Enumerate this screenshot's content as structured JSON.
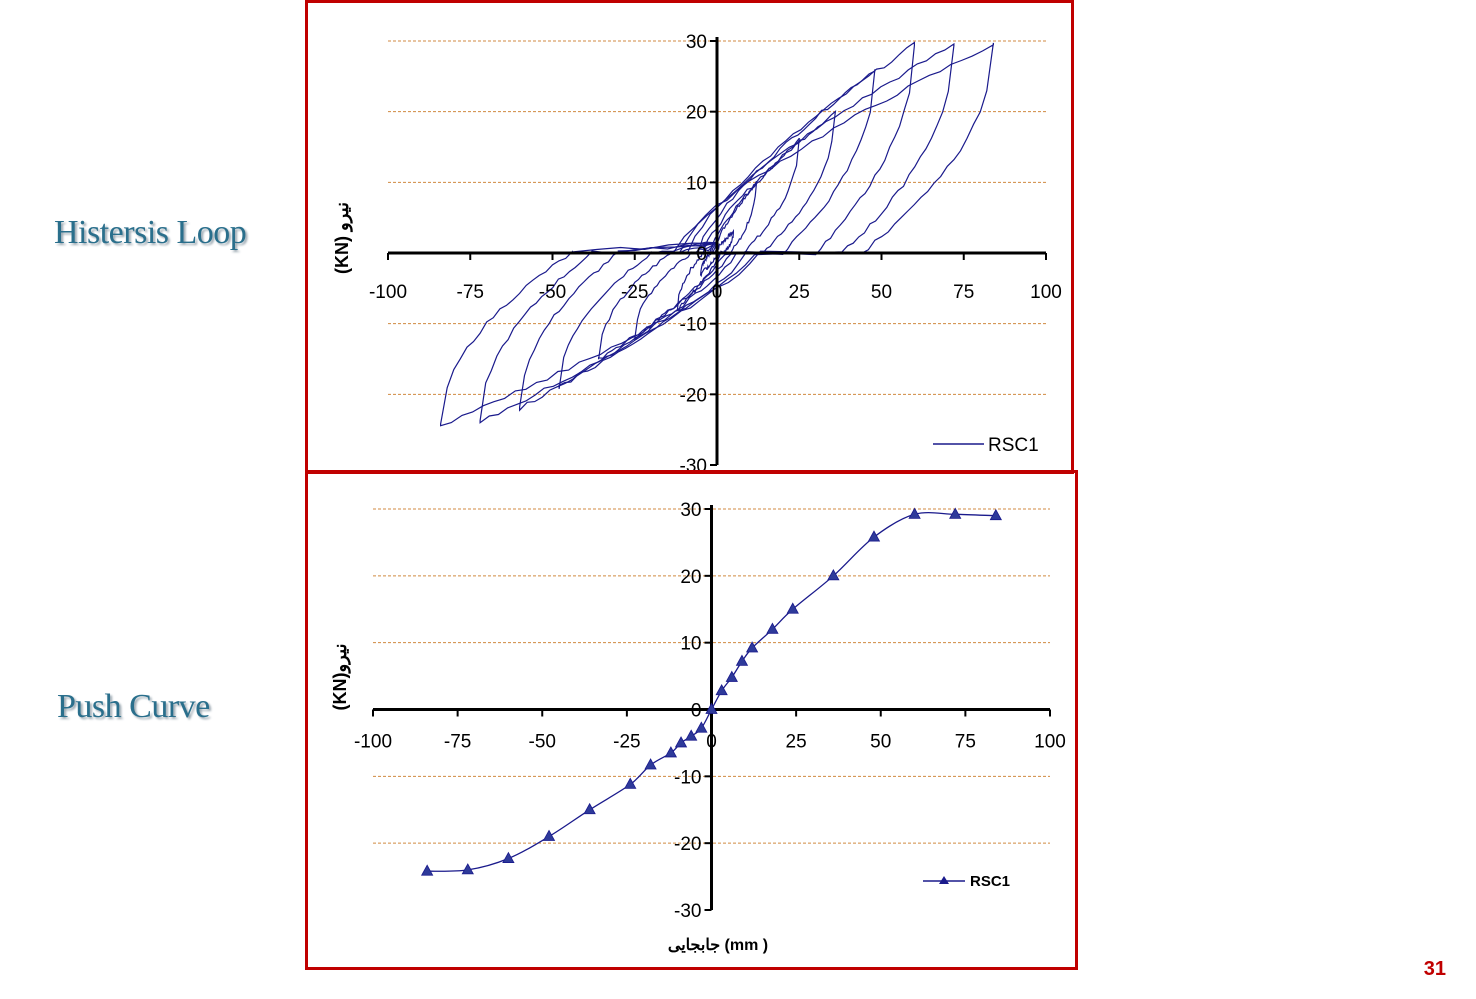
{
  "slide": {
    "label_hysteresis": "Histersis Loop",
    "label_push": "Push Curve",
    "page_number": "31"
  },
  "chart_data": [
    {
      "type": "line",
      "x_ticks": [
        "-100",
        "-75",
        "-50",
        "-25",
        "0",
        "25",
        "50",
        "75",
        "100"
      ],
      "y_ticks": [
        "30",
        "20",
        "10",
        "0",
        "-10",
        "-20",
        "-30"
      ],
      "xlim": [
        -100,
        100
      ],
      "ylim": [
        -30,
        30
      ],
      "ylabel": "(KN) نیرو",
      "grid": "horizontal-dashed",
      "legend": "bottom-right",
      "series": [
        {
          "name": "RSC1",
          "color": "#1a1a8c",
          "cycles": [
            {
              "peak_pos": [
                5,
                3
              ],
              "peak_neg": [
                -5,
                -3
              ],
              "residual": 2
            },
            {
              "peak_pos": [
                12,
                10
              ],
              "peak_neg": [
                -12,
                -8
              ],
              "residual": 4
            },
            {
              "peak_pos": [
                25,
                16
              ],
              "peak_neg": [
                -25,
                -12
              ],
              "residual": 8
            },
            {
              "peak_pos": [
                36,
                20
              ],
              "peak_neg": [
                -36,
                -15
              ],
              "residual": 14
            },
            {
              "peak_pos": [
                48,
                26
              ],
              "peak_neg": [
                -48,
                -19
              ],
              "residual": 20
            },
            {
              "peak_pos": [
                60,
                29.5
              ],
              "peak_neg": [
                -60,
                -22
              ],
              "residual": 30
            },
            {
              "peak_pos": [
                72,
                29.5
              ],
              "peak_neg": [
                -72,
                -24
              ],
              "residual": 38
            },
            {
              "peak_pos": [
                84,
                29.5
              ],
              "peak_neg": [
                -84,
                -24.5
              ],
              "residual": 44
            }
          ]
        }
      ]
    },
    {
      "type": "line",
      "x_ticks": [
        "-100",
        "-75",
        "-50",
        "-25",
        "0",
        "25",
        "50",
        "75",
        "100"
      ],
      "y_ticks": [
        "30",
        "20",
        "10",
        "0",
        "-10",
        "-20",
        "-30"
      ],
      "xlim": [
        -100,
        100
      ],
      "ylim": [
        -30,
        30
      ],
      "ylabel": "(KN)نیرو",
      "xlabel": "جابجایی (mm )",
      "grid": "horizontal-dashed",
      "legend": "bottom-right",
      "series": [
        {
          "name": "RSC1",
          "color": "#1a1a8c",
          "marker": "triangle",
          "x": [
            -84,
            -72,
            -60,
            -48,
            -36,
            -24,
            -18,
            -12,
            -9,
            -6,
            -3,
            0,
            3,
            6,
            9,
            12,
            18,
            24,
            36,
            48,
            60,
            72,
            84
          ],
          "y": [
            -24.2,
            -24,
            -22.3,
            -19,
            -15,
            -11.2,
            -8.3,
            -6.5,
            -5,
            -4,
            -2.8,
            0,
            2.8,
            4.8,
            7.2,
            9.2,
            12,
            15,
            20,
            25.8,
            29.2,
            29.2,
            29
          ]
        }
      ]
    }
  ]
}
